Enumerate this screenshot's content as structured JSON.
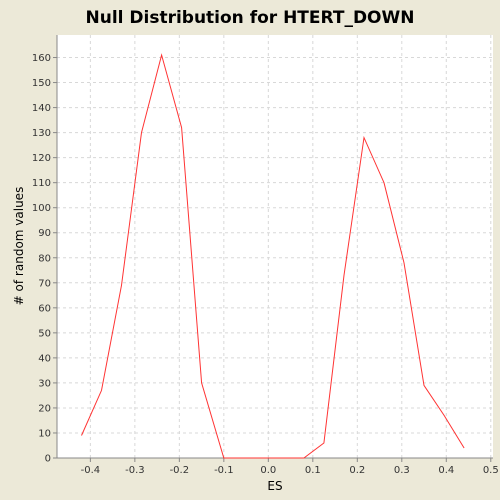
{
  "chart_data": {
    "type": "line",
    "title": "Null Distribution for HTERT_DOWN",
    "xlabel": "ES",
    "ylabel": "# of random values",
    "xlim": [
      -0.475,
      0.505
    ],
    "ylim": [
      0,
      169
    ],
    "xticks": [
      -0.4,
      -0.3,
      -0.2,
      -0.1,
      0.0,
      0.1,
      0.2,
      0.3,
      0.4,
      0.5
    ],
    "xtick_labels": [
      "-0.4",
      "-0.3",
      "-0.2",
      "-0.1",
      "0.0",
      "0.1",
      "0.2",
      "0.3",
      "0.4",
      "0.5"
    ],
    "yticks": [
      0,
      10,
      20,
      30,
      40,
      50,
      60,
      70,
      80,
      90,
      100,
      110,
      120,
      130,
      140,
      150,
      160
    ],
    "ytick_labels": [
      "0",
      "10",
      "20",
      "30",
      "40",
      "50",
      "60",
      "70",
      "80",
      "90",
      "100",
      "110",
      "120",
      "130",
      "140",
      "150",
      "160"
    ],
    "grid": true,
    "series": [
      {
        "color": "#ff3333",
        "x": [
          -0.42,
          -0.375,
          -0.33,
          -0.285,
          -0.24,
          -0.195,
          -0.15,
          -0.1,
          -0.06,
          -0.01,
          0.035,
          0.08,
          0.125,
          0.17,
          0.215,
          0.26,
          0.305,
          0.35,
          0.395,
          0.44
        ],
        "y": [
          9,
          27,
          69,
          130,
          161,
          132,
          30,
          0,
          0,
          0,
          0,
          0,
          6,
          73,
          128,
          110,
          78,
          29,
          17,
          4
        ]
      }
    ]
  }
}
